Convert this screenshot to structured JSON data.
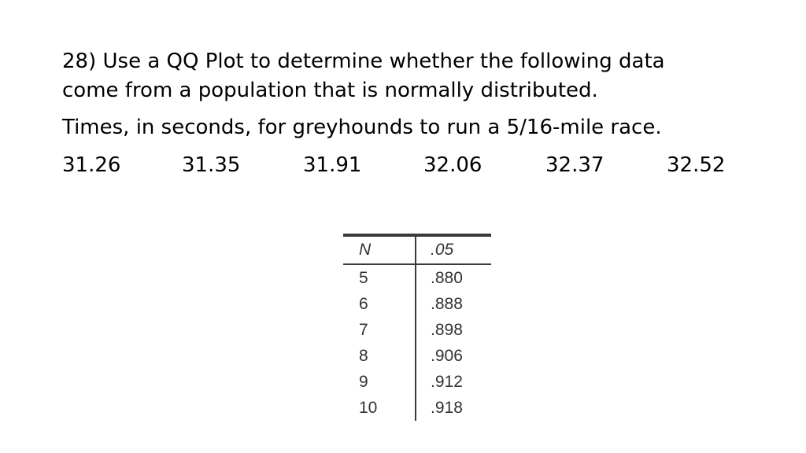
{
  "question": {
    "line1": "28) Use a QQ Plot to determine whether the following data",
    "line2": "come from a population that is normally distributed."
  },
  "context": "Times, in seconds, for greyhounds to run a 5/16-mile race.",
  "data_values": [
    "31.26",
    "31.35",
    "31.91",
    "32.06",
    "32.37",
    "32.52"
  ],
  "critical_table": {
    "headers": [
      "N",
      ".05"
    ],
    "rows": [
      {
        "n": "5",
        "value": ".880"
      },
      {
        "n": "6",
        "value": ".888"
      },
      {
        "n": "7",
        "value": ".898"
      },
      {
        "n": "8",
        "value": ".906"
      },
      {
        "n": "9",
        "value": ".912"
      },
      {
        "n": "10",
        "value": ".918"
      }
    ]
  }
}
